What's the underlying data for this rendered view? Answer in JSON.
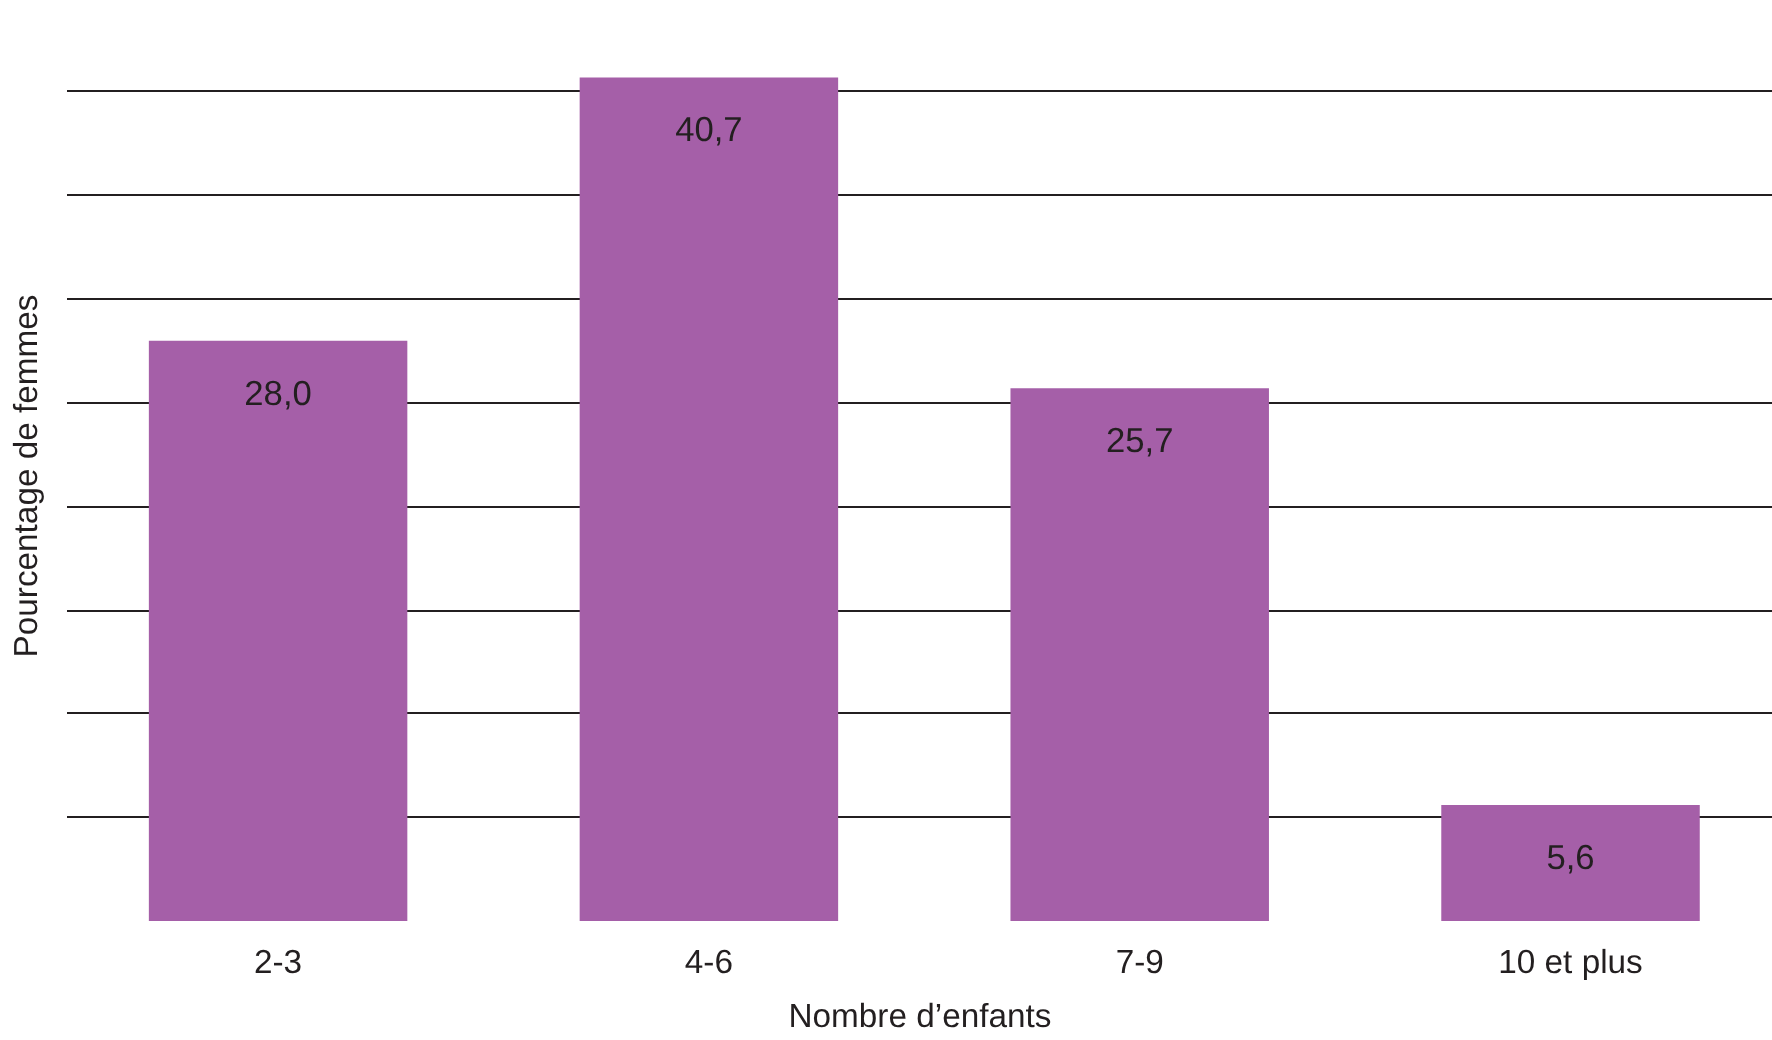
{
  "chart_data": {
    "type": "bar",
    "xlabel": "Nombre d’enfants",
    "ylabel": "Pourcentage de femmes",
    "categories": [
      "2-3",
      "4-6",
      "7-9",
      "10 et plus"
    ],
    "values": [
      28.0,
      40.7,
      25.7,
      5.6
    ],
    "value_labels": [
      "28,0",
      "40,7",
      "25,7",
      "5,6"
    ],
    "color": "#a55fa8",
    "grid": "y",
    "tick_labels": "x"
  }
}
